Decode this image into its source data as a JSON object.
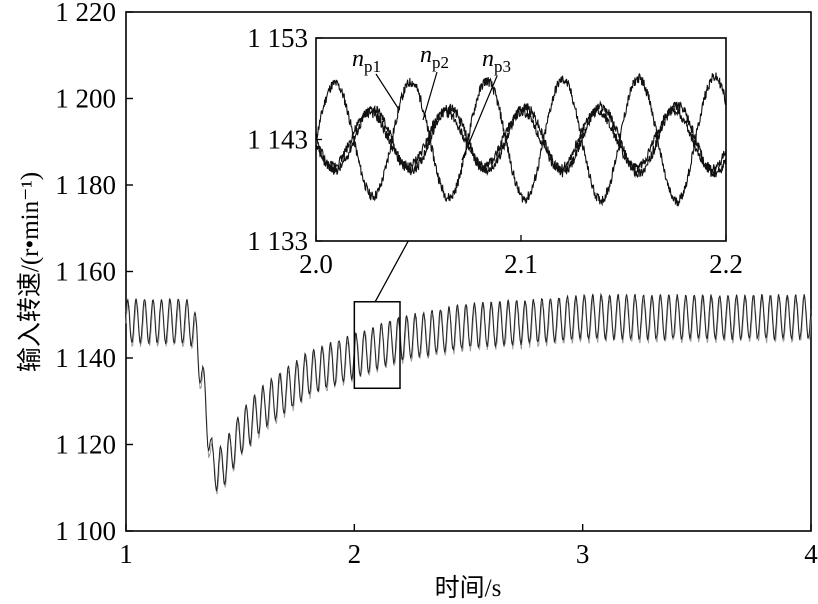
{
  "chart_data": {
    "main": {
      "type": "line",
      "xlabel": "时间/s",
      "ylabel": "输入转速/(r•min⁻¹)",
      "xlim": [
        1,
        4
      ],
      "ylim": [
        1100,
        1220
      ],
      "xticks": [
        "1",
        "2",
        "3",
        "4"
      ],
      "yticks": [
        "1 100",
        "1 120",
        "1 140",
        "1 160",
        "1 180",
        "1 200",
        "1 220"
      ],
      "series": [
        {
          "role": "band-envelope",
          "x": [
            1.0,
            1.28,
            1.31,
            1.35,
            1.38,
            1.42,
            1.5,
            1.6,
            1.8,
            2.0,
            2.2,
            2.5,
            2.8,
            3.0,
            3.5,
            4.0
          ],
          "y": [
            1148,
            1148,
            1144,
            1128,
            1114,
            1114,
            1122,
            1128,
            1136,
            1140,
            1144,
            1147,
            1148,
            1149,
            1149,
            1149
          ]
        }
      ],
      "oscillation_amplitude": 5,
      "zoom_box": {
        "x": [
          2.0,
          2.2
        ],
        "y": [
          1133,
          1153
        ]
      }
    },
    "inset": {
      "type": "line",
      "xlim": [
        2.0,
        2.2
      ],
      "ylim": [
        1133,
        1153
      ],
      "xticks": [
        "2.0",
        "2.1",
        "2.2"
      ],
      "yticks": [
        "1 153",
        "1 143",
        "1 133"
      ],
      "series": [
        {
          "name": "n_p1",
          "main": "n",
          "sub": "p1",
          "mean": 1143,
          "amplitude": 5.5,
          "freq_hz": 27,
          "phase": 0
        },
        {
          "name": "n_p2",
          "main": "n",
          "sub": "p2",
          "mean": 1143,
          "amplitude": 3.0,
          "freq_hz": 27,
          "phase": 3.14
        },
        {
          "name": "n_p3",
          "main": "n",
          "sub": "p3",
          "mean": 1143,
          "amplitude": 2.6,
          "freq_hz": 27,
          "phase": 3.4
        }
      ]
    }
  }
}
